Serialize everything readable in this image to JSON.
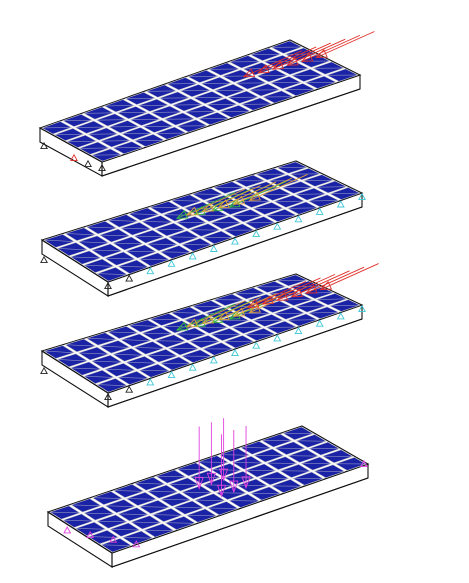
{
  "colors": {
    "background": "#ffffff",
    "slab_top": "#d3d3d3",
    "slab_side": "#c4c4c4",
    "element_fill": "#1a22a6",
    "element_edge": "#d0d0d0",
    "edge": "#111111",
    "load_red": "#e0302a",
    "load_green": "#3cbf3c",
    "load_orange": "#e2a23a",
    "load_magenta": "#e040e0",
    "support_cyan": "#3fc8d8",
    "support_black": "#222222",
    "support_red": "#e0302a"
  },
  "panels": [
    {
      "id": "panel-1",
      "loads": [
        {
          "color_key": "load_red",
          "direction": "horizontal",
          "count": 6
        }
      ],
      "supports": "left-corner"
    },
    {
      "id": "panel-2",
      "loads": [
        {
          "color_key": "load_green",
          "direction": "horizontal",
          "count": 4
        },
        {
          "color_key": "load_orange",
          "direction": "horizontal",
          "count": 5
        }
      ],
      "supports": "front-edge"
    },
    {
      "id": "panel-3",
      "loads": [
        {
          "color_key": "load_green",
          "direction": "horizontal",
          "count": 4
        },
        {
          "color_key": "load_orange",
          "direction": "horizontal",
          "count": 5
        },
        {
          "color_key": "load_red",
          "direction": "horizontal",
          "count": 6
        }
      ],
      "supports": "front-edge"
    },
    {
      "id": "panel-4",
      "loads": [
        {
          "color_key": "load_magenta",
          "direction": "vertical",
          "count": 6
        }
      ],
      "supports": "magenta-ends"
    }
  ]
}
